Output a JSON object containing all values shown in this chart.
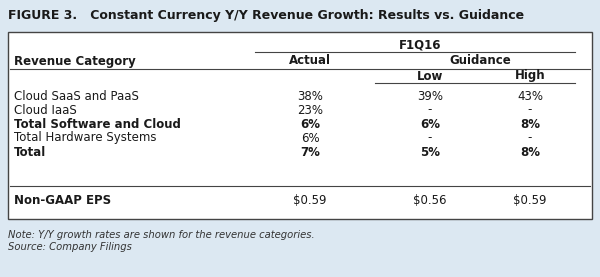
{
  "title": "FIGURE 3.   Constant Currency Y/Y Revenue Growth: Results vs. Guidance",
  "header_f1q16": "F1Q16",
  "header_actual": "Actual",
  "header_guidance": "Guidance",
  "header_low": "Low",
  "header_high": "High",
  "col_header": "Revenue Category",
  "rows": [
    [
      "Cloud SaaS and PaaS",
      "38%",
      "39%",
      "43%"
    ],
    [
      "Cloud IaaS",
      "23%",
      "-",
      "-"
    ],
    [
      "Total Software and Cloud",
      "6%",
      "6%",
      "8%"
    ],
    [
      "Total Hardware Systems",
      "6%",
      "-",
      "-"
    ],
    [
      "Total",
      "7%",
      "5%",
      "8%"
    ]
  ],
  "bold_rows": [
    2,
    4
  ],
  "eps_row": [
    "Non-GAAP EPS",
    "$0.59",
    "$0.56",
    "$0.59"
  ],
  "note": "Note: Y/Y growth rates are shown for the revenue categories.",
  "source": "Source: Company Filings",
  "bg_color": "#dce8f2",
  "title_bg": "#dce8f2",
  "table_bg": "#ffffff",
  "border_color": "#444444",
  "text_color": "#1a1a1a",
  "font_size": 8.5,
  "title_font_size": 9.0
}
